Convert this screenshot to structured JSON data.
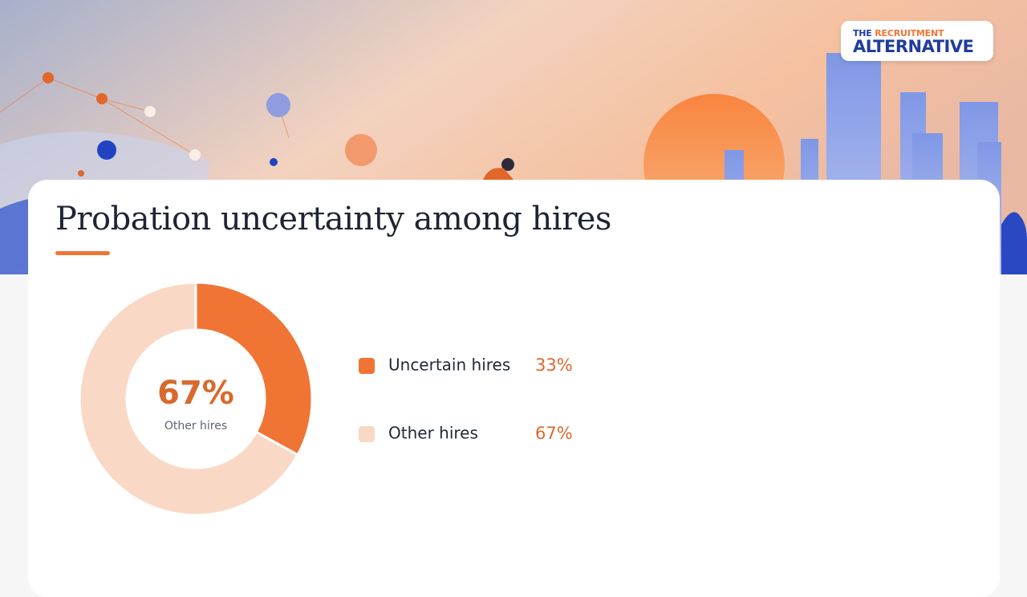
{
  "logo": {
    "prefix": "THE",
    "highlight": "RECRUITMENT",
    "name": "ALTERNATIVE"
  },
  "chart_data": {
    "type": "pie",
    "donut": true,
    "title": "Probation uncertainty among hires",
    "categories": [
      "Uncertain hires",
      "Other hires"
    ],
    "values": [
      33,
      67
    ],
    "value_labels": [
      "33%",
      "67%"
    ],
    "colors": [
      "#f07434",
      "#f9d9c6"
    ],
    "center_index": 1
  }
}
